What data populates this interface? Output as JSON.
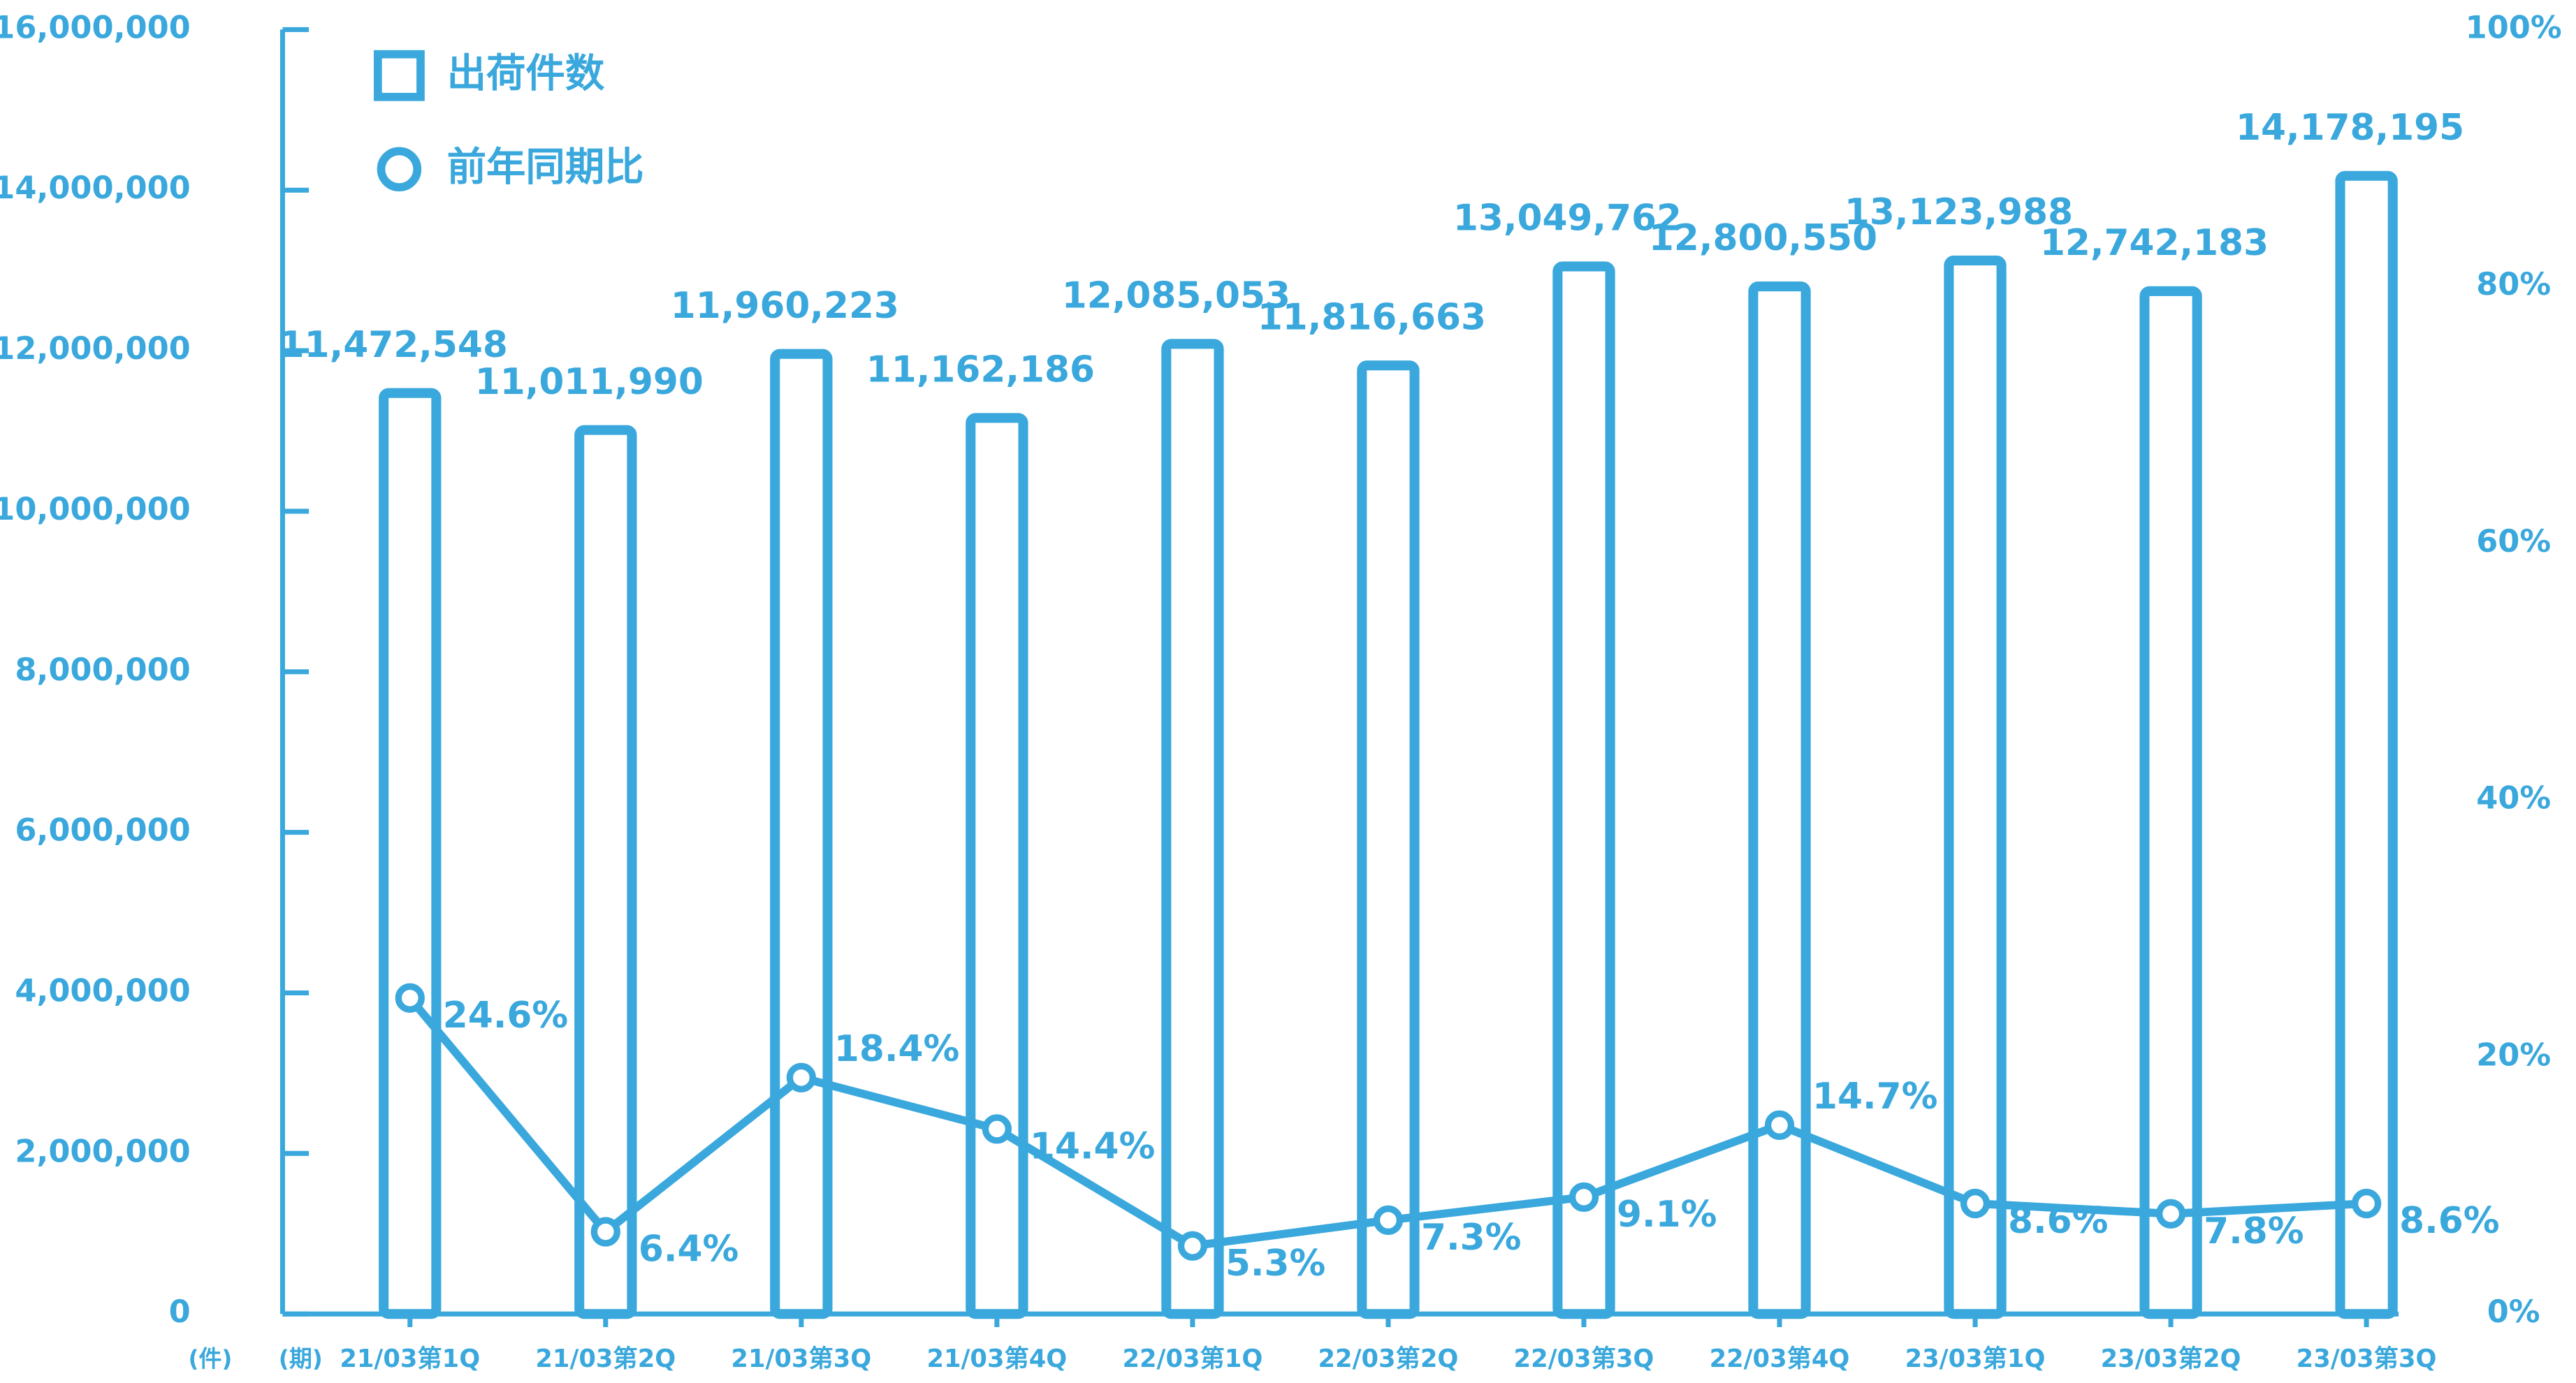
{
  "chart_data": {
    "type": "bar-line",
    "categories": [
      "21/03第1Q",
      "21/03第2Q",
      "21/03第3Q",
      "21/03第4Q",
      "22/03第1Q",
      "22/03第2Q",
      "22/03第3Q",
      "22/03第4Q",
      "23/03第1Q",
      "23/03第2Q",
      "23/03第3Q"
    ],
    "y_unit_label": "(件)",
    "x_unit_label": "(期)",
    "legend_position": "top-left",
    "series": [
      {
        "name": "出荷件数",
        "type": "bar",
        "color": "#3aa8dc",
        "values": [
          11472548,
          11011990,
          11960223,
          11162186,
          12085053,
          11816663,
          13049762,
          12800550,
          13123988,
          12742183,
          14178195
        ],
        "value_labels": [
          "11,472,548",
          "11,011,990",
          "11,960,223",
          "11,162,186",
          "12,085,053",
          "11,816,663",
          "13,049,762",
          "12,800,550",
          "13,123,988",
          "12,742,183",
          "14,178,195"
        ]
      },
      {
        "name": "前年同期比",
        "type": "line",
        "axis": "y2",
        "color": "#3aa8dc",
        "values": [
          24.6,
          6.4,
          18.4,
          14.4,
          5.3,
          7.3,
          9.1,
          14.7,
          8.6,
          7.8,
          8.6
        ],
        "value_labels": [
          "24.6%",
          "6.4%",
          "18.4%",
          "14.4%",
          "5.3%",
          "7.3%",
          "9.1%",
          "14.7%",
          "8.6%",
          "7.8%",
          "8.6%"
        ]
      }
    ],
    "ylim": [
      0,
      16000000
    ],
    "yticks": [
      {
        "value": 0,
        "label": "0"
      },
      {
        "value": 2000000,
        "label": "2,000,000"
      },
      {
        "value": 4000000,
        "label": "4,000,000"
      },
      {
        "value": 6000000,
        "label": "6,000,000"
      },
      {
        "value": 8000000,
        "label": "8,000,000"
      },
      {
        "value": 10000000,
        "label": "10,000,000"
      },
      {
        "value": 12000000,
        "label": "12,000,000"
      },
      {
        "value": 14000000,
        "label": "14,000,000"
      },
      {
        "value": 16000000,
        "label": "16,000,000"
      }
    ],
    "y2lim": [
      0,
      100
    ],
    "y2ticks": [
      {
        "value": 0,
        "label": "0%"
      },
      {
        "value": 20,
        "label": "20%"
      },
      {
        "value": 40,
        "label": "40%"
      },
      {
        "value": 60,
        "label": "60%"
      },
      {
        "value": 80,
        "label": "80%"
      },
      {
        "value": 100,
        "label": "100%"
      }
    ]
  }
}
